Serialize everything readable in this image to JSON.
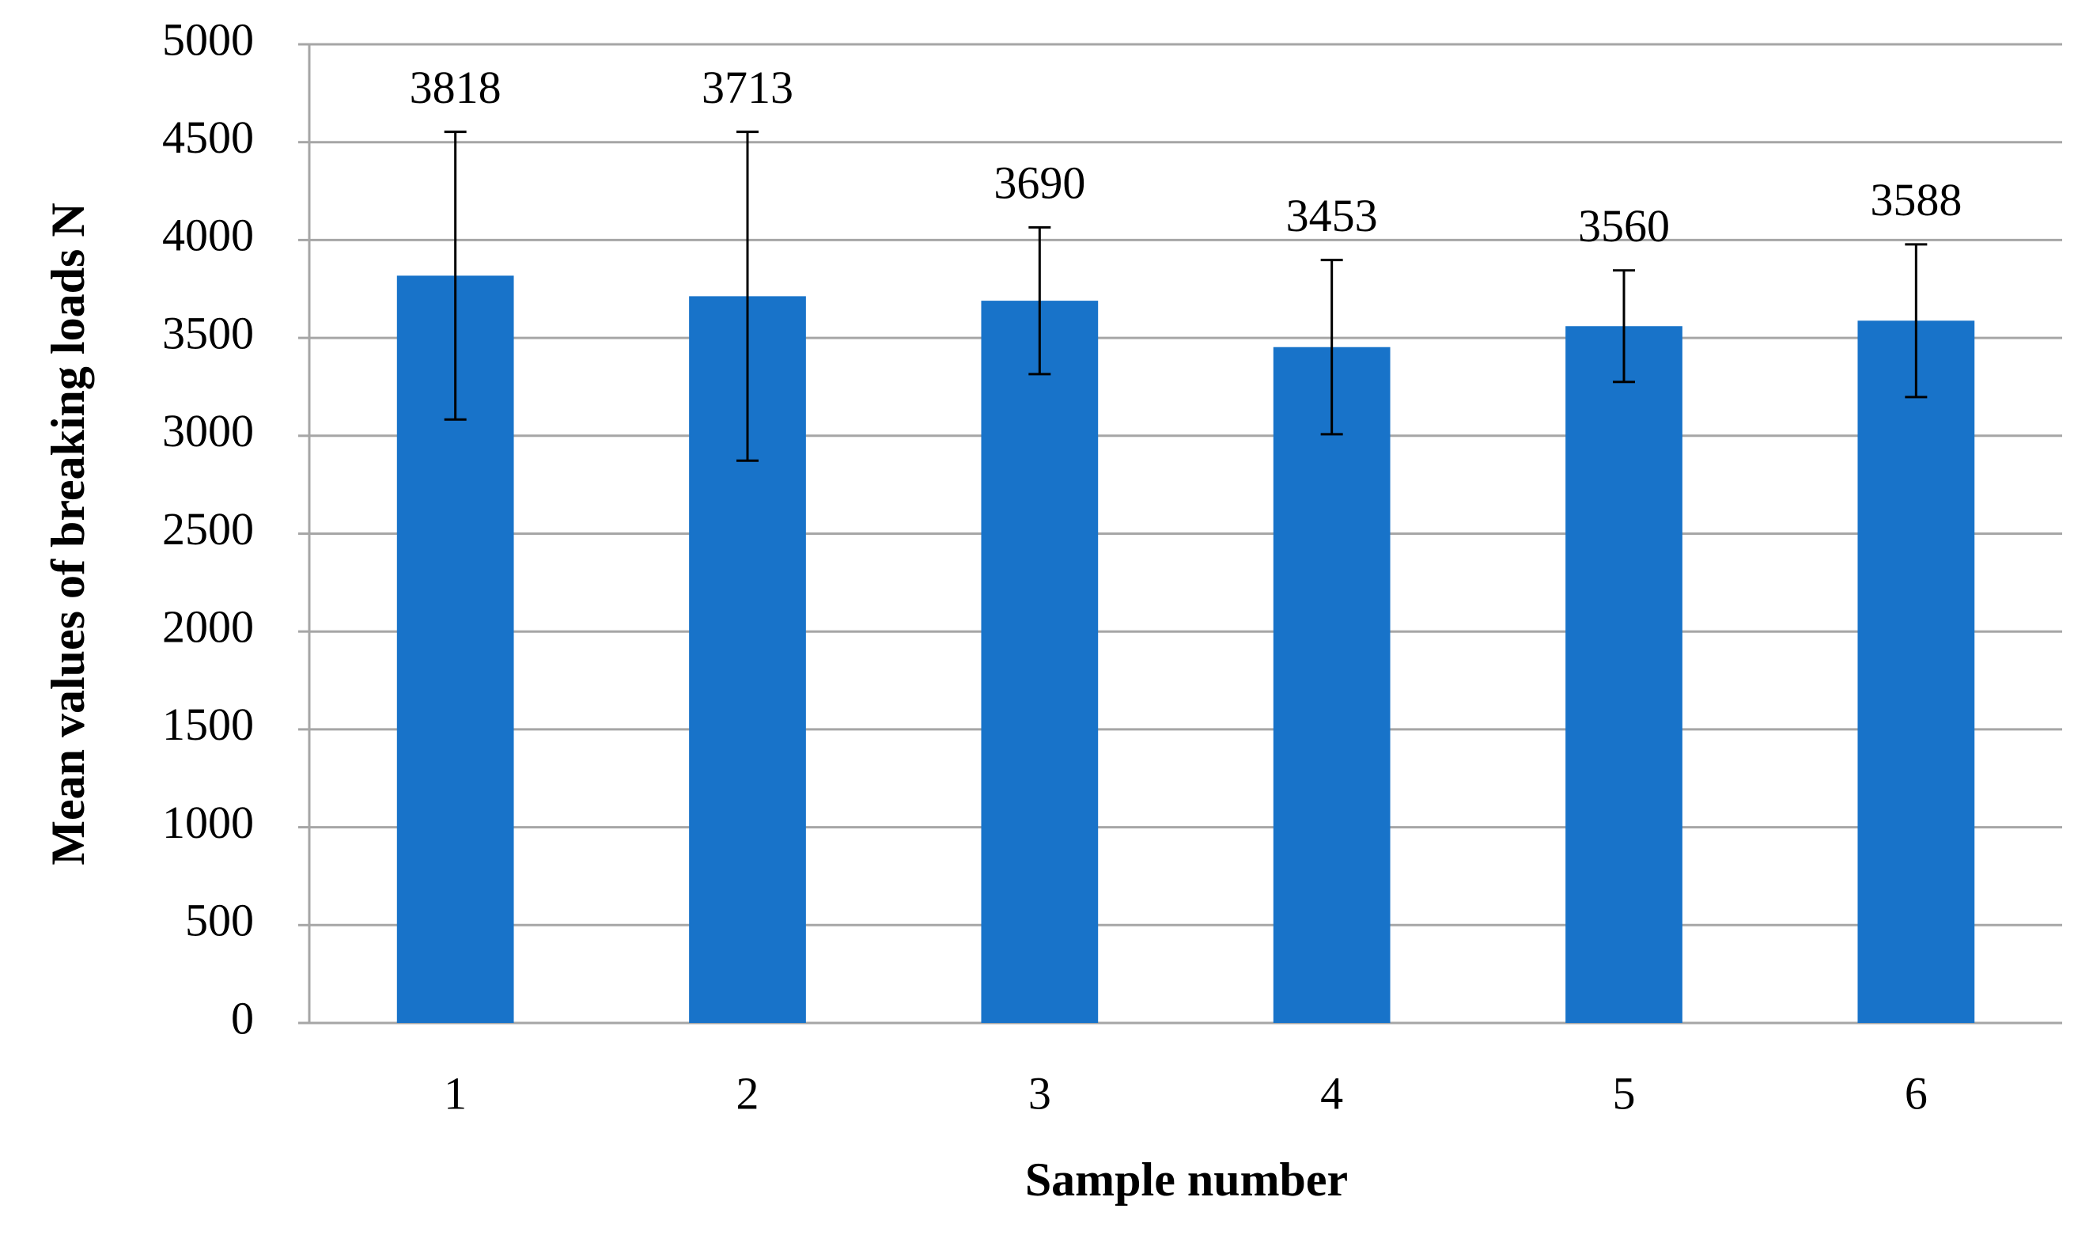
{
  "chart_data": {
    "type": "bar",
    "x_label": "Sample number",
    "y_label": "Mean values of breaking loads N",
    "categories": [
      "1",
      "2",
      "3",
      "4",
      "5",
      "6"
    ],
    "values": [
      3818,
      3713,
      3690,
      3453,
      3560,
      3588
    ],
    "errors": [
      735,
      840,
      375,
      445,
      285,
      390
    ],
    "color": "#1873c9",
    "ylim": [
      0,
      5000
    ],
    "yticks": [
      0,
      500,
      1000,
      1500,
      2000,
      2500,
      3000,
      3500,
      4000,
      4500,
      5000
    ],
    "grid": true
  }
}
